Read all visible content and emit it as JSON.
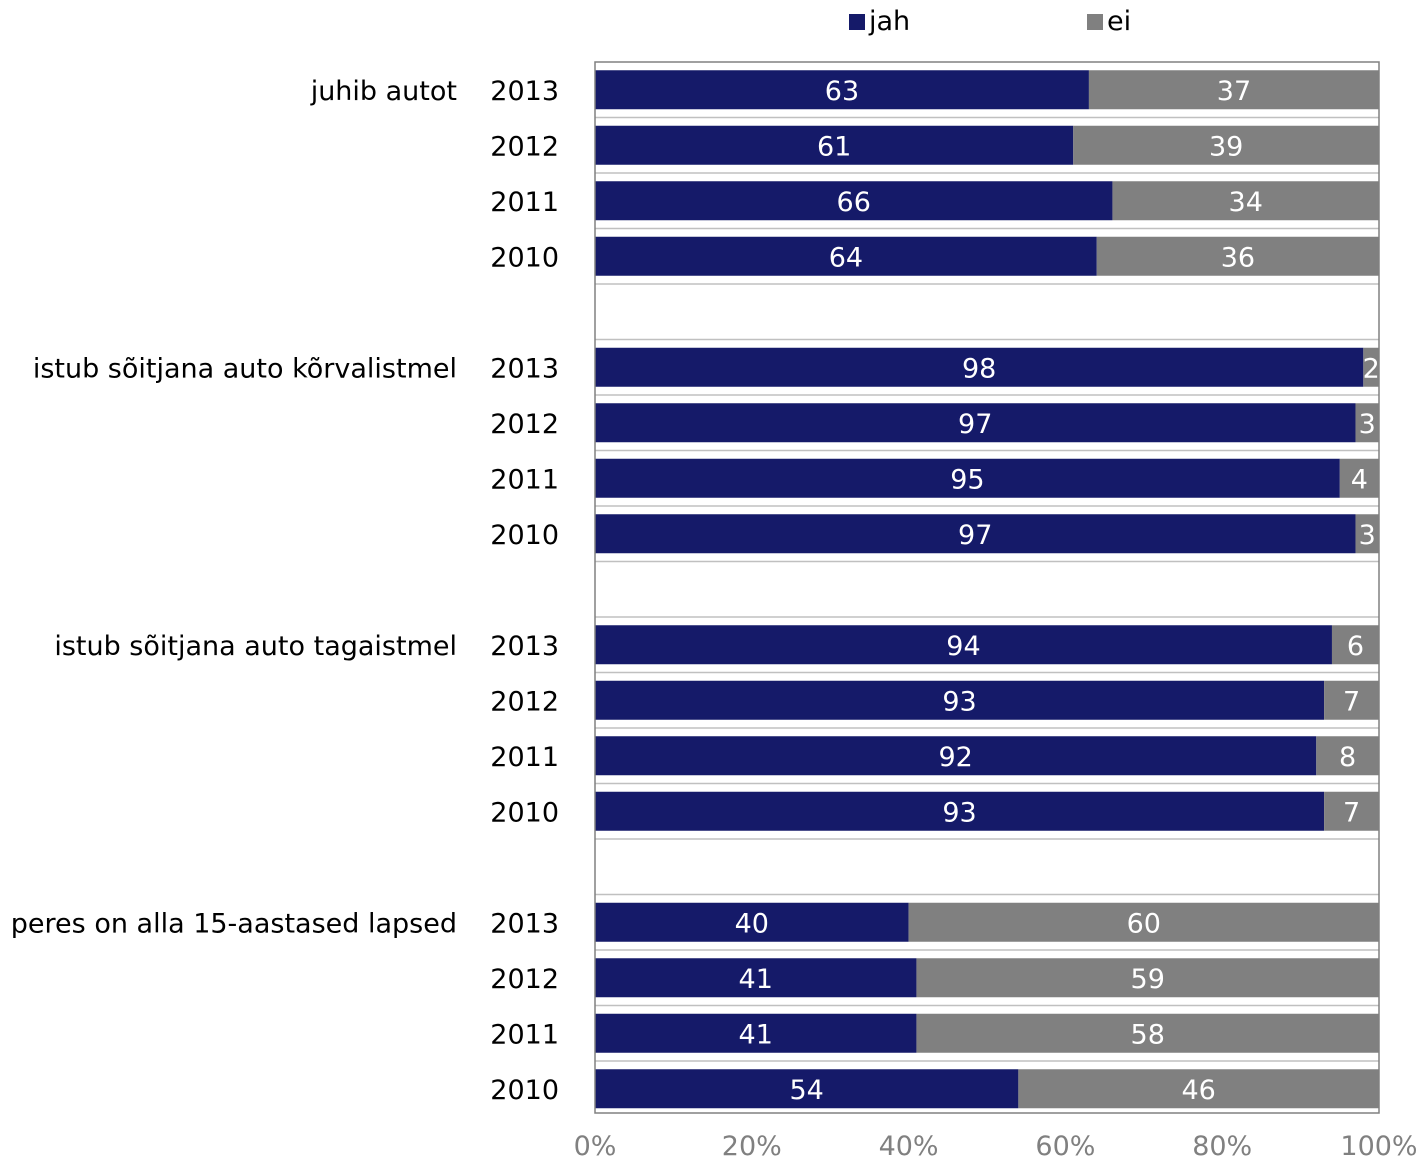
{
  "chart_data": {
    "type": "bar",
    "orientation": "horizontal",
    "stacked": true,
    "percent_scale": true,
    "legend": {
      "placement": "top",
      "items": [
        "jah",
        "ei"
      ]
    },
    "colors": {
      "jah": "#151a69",
      "ei": "#808080",
      "gridline": "#c0c0c0",
      "axis": "#808080",
      "tick_text": "#808080",
      "text": "#000000"
    },
    "x_ticks": [
      "0%",
      "20%",
      "40%",
      "60%",
      "80%",
      "100%"
    ],
    "xlim": [
      0,
      100
    ],
    "grid": true,
    "groups": [
      {
        "label": "juhib autot",
        "rows": [
          {
            "year": "2013",
            "jah": 63,
            "ei": 37
          },
          {
            "year": "2012",
            "jah": 61,
            "ei": 39
          },
          {
            "year": "2011",
            "jah": 66,
            "ei": 34
          },
          {
            "year": "2010",
            "jah": 64,
            "ei": 36
          }
        ]
      },
      {
        "label": "istub sõitjana auto kõrvalistmel",
        "rows": [
          {
            "year": "2013",
            "jah": 98,
            "ei": 2
          },
          {
            "year": "2012",
            "jah": 97,
            "ei": 3
          },
          {
            "year": "2011",
            "jah": 95,
            "ei": 4
          },
          {
            "year": "2010",
            "jah": 97,
            "ei": 3
          }
        ]
      },
      {
        "label": "istub sõitjana auto tagaistmel",
        "rows": [
          {
            "year": "2013",
            "jah": 94,
            "ei": 6
          },
          {
            "year": "2012",
            "jah": 93,
            "ei": 7
          },
          {
            "year": "2011",
            "jah": 92,
            "ei": 8
          },
          {
            "year": "2010",
            "jah": 93,
            "ei": 7
          }
        ]
      },
      {
        "label": "peres on alla 15-aastased lapsed",
        "rows": [
          {
            "year": "2013",
            "jah": 40,
            "ei": 60
          },
          {
            "year": "2012",
            "jah": 41,
            "ei": 59
          },
          {
            "year": "2011",
            "jah": 41,
            "ei": 58
          },
          {
            "year": "2010",
            "jah": 54,
            "ei": 46
          }
        ]
      }
    ]
  }
}
